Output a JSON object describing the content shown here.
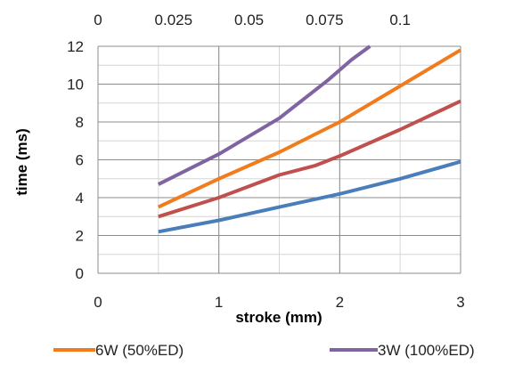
{
  "chart_data": {
    "type": "line",
    "title": "",
    "xlabel": "stroke (mm)",
    "ylabel": "time (ms)",
    "xlim": [
      0,
      3
    ],
    "ylim": [
      0,
      12
    ],
    "x_ticks": [
      "0",
      "1",
      "2",
      "3"
    ],
    "y_ticks": [
      "0",
      "2",
      "4",
      "6",
      "8",
      "10",
      "12"
    ],
    "x2lim": [
      0,
      0.12
    ],
    "x2_ticks": [
      {
        "value": 0,
        "label": "0"
      },
      {
        "value": 0.025,
        "label": "0.025"
      },
      {
        "value": 0.05,
        "label": "0.05"
      },
      {
        "value": 0.075,
        "label": "0.075"
      },
      {
        "value": 0.1,
        "label": "0.1"
      }
    ],
    "grid": {
      "major_x_step": 1,
      "minor_x_step": 0.5,
      "major_y_step": 2,
      "minor_y_step": 1
    },
    "legend_position": "bottom",
    "series": [
      {
        "name": "",
        "color": "#4a7ebb",
        "in_legend": false,
        "points": [
          [
            0.5,
            2.2
          ],
          [
            1.0,
            2.8
          ],
          [
            1.5,
            3.5
          ],
          [
            2.0,
            4.2
          ],
          [
            2.5,
            5.0
          ],
          [
            3.0,
            5.9
          ]
        ]
      },
      {
        "name": "",
        "color": "#c0504d",
        "in_legend": false,
        "points": [
          [
            0.5,
            3.0
          ],
          [
            1.0,
            4.0
          ],
          [
            1.5,
            5.2
          ],
          [
            1.8,
            5.7
          ],
          [
            2.0,
            6.2
          ],
          [
            2.5,
            7.6
          ],
          [
            3.0,
            9.1
          ]
        ]
      },
      {
        "name": "6W (50%ED)",
        "color": "#f07c1e",
        "in_legend": true,
        "points": [
          [
            0.5,
            3.5
          ],
          [
            1.0,
            5.0
          ],
          [
            1.5,
            6.4
          ],
          [
            2.0,
            8.0
          ],
          [
            2.5,
            9.9
          ],
          [
            3.0,
            11.8
          ]
        ]
      },
      {
        "name": "3W (100%ED)",
        "color": "#8064a2",
        "in_legend": true,
        "points": [
          [
            0.5,
            4.7
          ],
          [
            1.0,
            6.3
          ],
          [
            1.5,
            8.2
          ],
          [
            1.9,
            10.2
          ],
          [
            2.1,
            11.3
          ],
          [
            2.25,
            12.0
          ]
        ]
      }
    ]
  }
}
